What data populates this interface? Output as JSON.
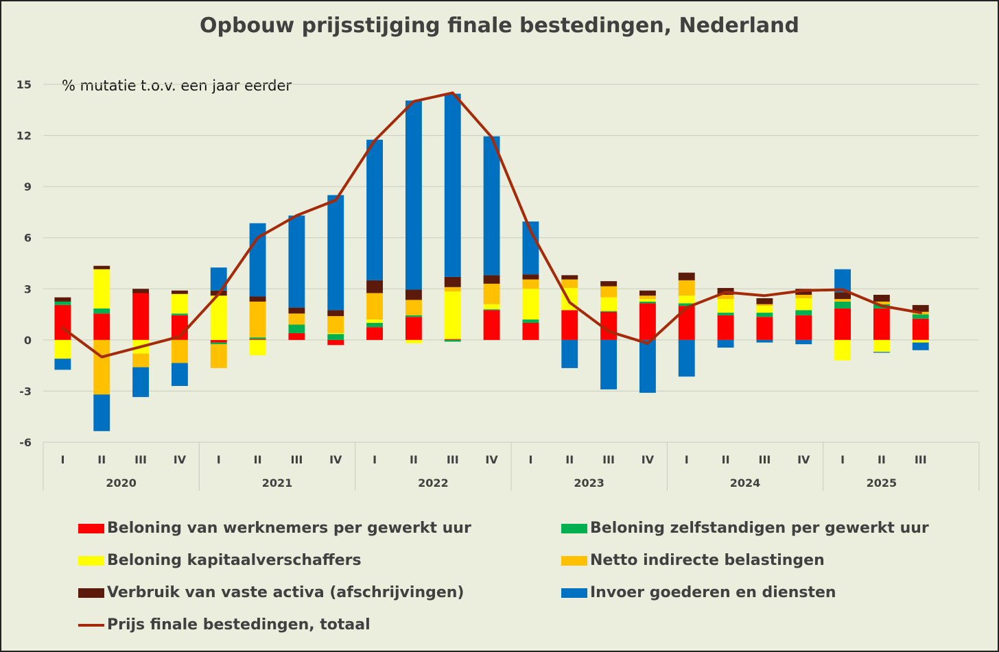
{
  "chart_data": {
    "type": "bar",
    "stacked": true,
    "title": "Opbouw prijsstijging finale bestedingen, Nederland",
    "annotation": "% mutatie t.o.v. een jaar eerder",
    "ylim": [
      -6,
      15
    ],
    "yticks": [
      -6,
      -3,
      0,
      3,
      6,
      9,
      12,
      15
    ],
    "ytick_labels": [
      "-6",
      "-3",
      "0",
      "3",
      "6",
      "9",
      "12",
      "15"
    ],
    "years": [
      {
        "label": "2020",
        "quarters": 4
      },
      {
        "label": "2021",
        "quarters": 4
      },
      {
        "label": "2022",
        "quarters": 4
      },
      {
        "label": "2023",
        "quarters": 4
      },
      {
        "label": "2024",
        "quarters": 4
      },
      {
        "label": "2025",
        "quarters": 3
      }
    ],
    "categories": [
      "I",
      "II",
      "III",
      "IV",
      "I",
      "II",
      "III",
      "IV",
      "I",
      "II",
      "III",
      "IV",
      "I",
      "II",
      "III",
      "IV",
      "I",
      "II",
      "III",
      "IV",
      "I",
      "II",
      "III"
    ],
    "series": [
      {
        "name": "Beloning van werknemers per gewerkt uur",
        "color": "#ff0000",
        "values": [
          2.05,
          1.55,
          2.75,
          1.45,
          -0.15,
          0.05,
          0.4,
          -0.3,
          0.75,
          1.35,
          0.05,
          1.75,
          1.0,
          1.75,
          1.65,
          2.15,
          2.0,
          1.45,
          1.35,
          1.45,
          1.85,
          1.85,
          1.25
        ]
      },
      {
        "name": "Beloning zelfstandigen per gewerkt uur",
        "color": "#00b050",
        "values": [
          0.2,
          0.3,
          0.0,
          0.1,
          -0.1,
          0.1,
          0.5,
          0.35,
          0.25,
          0.1,
          -0.1,
          0.05,
          0.2,
          0.0,
          0.05,
          0.1,
          0.15,
          0.15,
          0.25,
          0.3,
          0.4,
          0.25,
          0.25
        ]
      },
      {
        "name": "Beloning kapitaalverschaffers",
        "color": "#ffff00",
        "values": [
          -1.1,
          2.3,
          -0.8,
          1.15,
          2.6,
          -0.9,
          0.0,
          0.05,
          0.2,
          -0.2,
          2.8,
          0.3,
          1.8,
          1.3,
          0.8,
          0.15,
          0.45,
          0.8,
          0.4,
          0.7,
          -1.2,
          -0.7,
          -0.15
        ]
      },
      {
        "name": "Netto indirecte belastingen",
        "color": "#ffc000",
        "values": [
          0.0,
          -3.2,
          -0.8,
          -1.35,
          -1.4,
          2.1,
          0.65,
          1.0,
          1.55,
          0.9,
          0.25,
          1.2,
          0.55,
          0.5,
          0.65,
          0.2,
          0.9,
          0.25,
          0.1,
          0.2,
          0.15,
          0.15,
          0.15
        ]
      },
      {
        "name": "Verbruik van vaste activa (afschrijvingen)",
        "color": "#5c1a0b",
        "values": [
          0.25,
          0.2,
          0.25,
          0.2,
          0.3,
          0.3,
          0.35,
          0.35,
          0.75,
          0.6,
          0.6,
          0.5,
          0.3,
          0.25,
          0.3,
          0.3,
          0.45,
          0.4,
          0.35,
          0.35,
          0.4,
          0.4,
          0.4
        ]
      },
      {
        "name": "Invoer goederen en diensten",
        "color": "#0070c0",
        "values": [
          -0.65,
          -2.15,
          -1.75,
          -1.35,
          1.35,
          4.3,
          5.4,
          6.75,
          8.25,
          11.1,
          10.75,
          8.15,
          3.1,
          -1.65,
          -2.9,
          -3.1,
          -2.15,
          -0.45,
          -0.15,
          -0.25,
          1.35,
          -0.05,
          -0.45
        ]
      }
    ],
    "line": {
      "name": "Prijs finale bestedingen, totaal",
      "color": "#a52a0a",
      "values": [
        0.7,
        -1.0,
        -0.4,
        0.2,
        2.7,
        6.0,
        7.3,
        8.2,
        11.7,
        14.0,
        14.5,
        11.9,
        6.4,
        2.2,
        0.5,
        -0.2,
        1.9,
        2.8,
        2.6,
        2.9,
        2.95,
        2.0,
        1.6
      ]
    },
    "legend_position": "bottom",
    "grid": true
  },
  "legend": [
    {
      "label": "Beloning van werknemers per gewerkt uur",
      "color": "#ff0000"
    },
    {
      "label": "Beloning zelfstandigen per gewerkt uur",
      "color": "#00b050"
    },
    {
      "label": "Beloning kapitaalverschaffers",
      "color": "#ffff00"
    },
    {
      "label": "Netto indirecte belastingen",
      "color": "#ffc000"
    },
    {
      "label": "Verbruik van vaste activa (afschrijvingen)",
      "color": "#5c1a0b"
    },
    {
      "label": "Invoer goederen en diensten",
      "color": "#0070c0"
    },
    {
      "label": "Prijs finale bestedingen, totaal",
      "color": "#a52a0a"
    }
  ]
}
